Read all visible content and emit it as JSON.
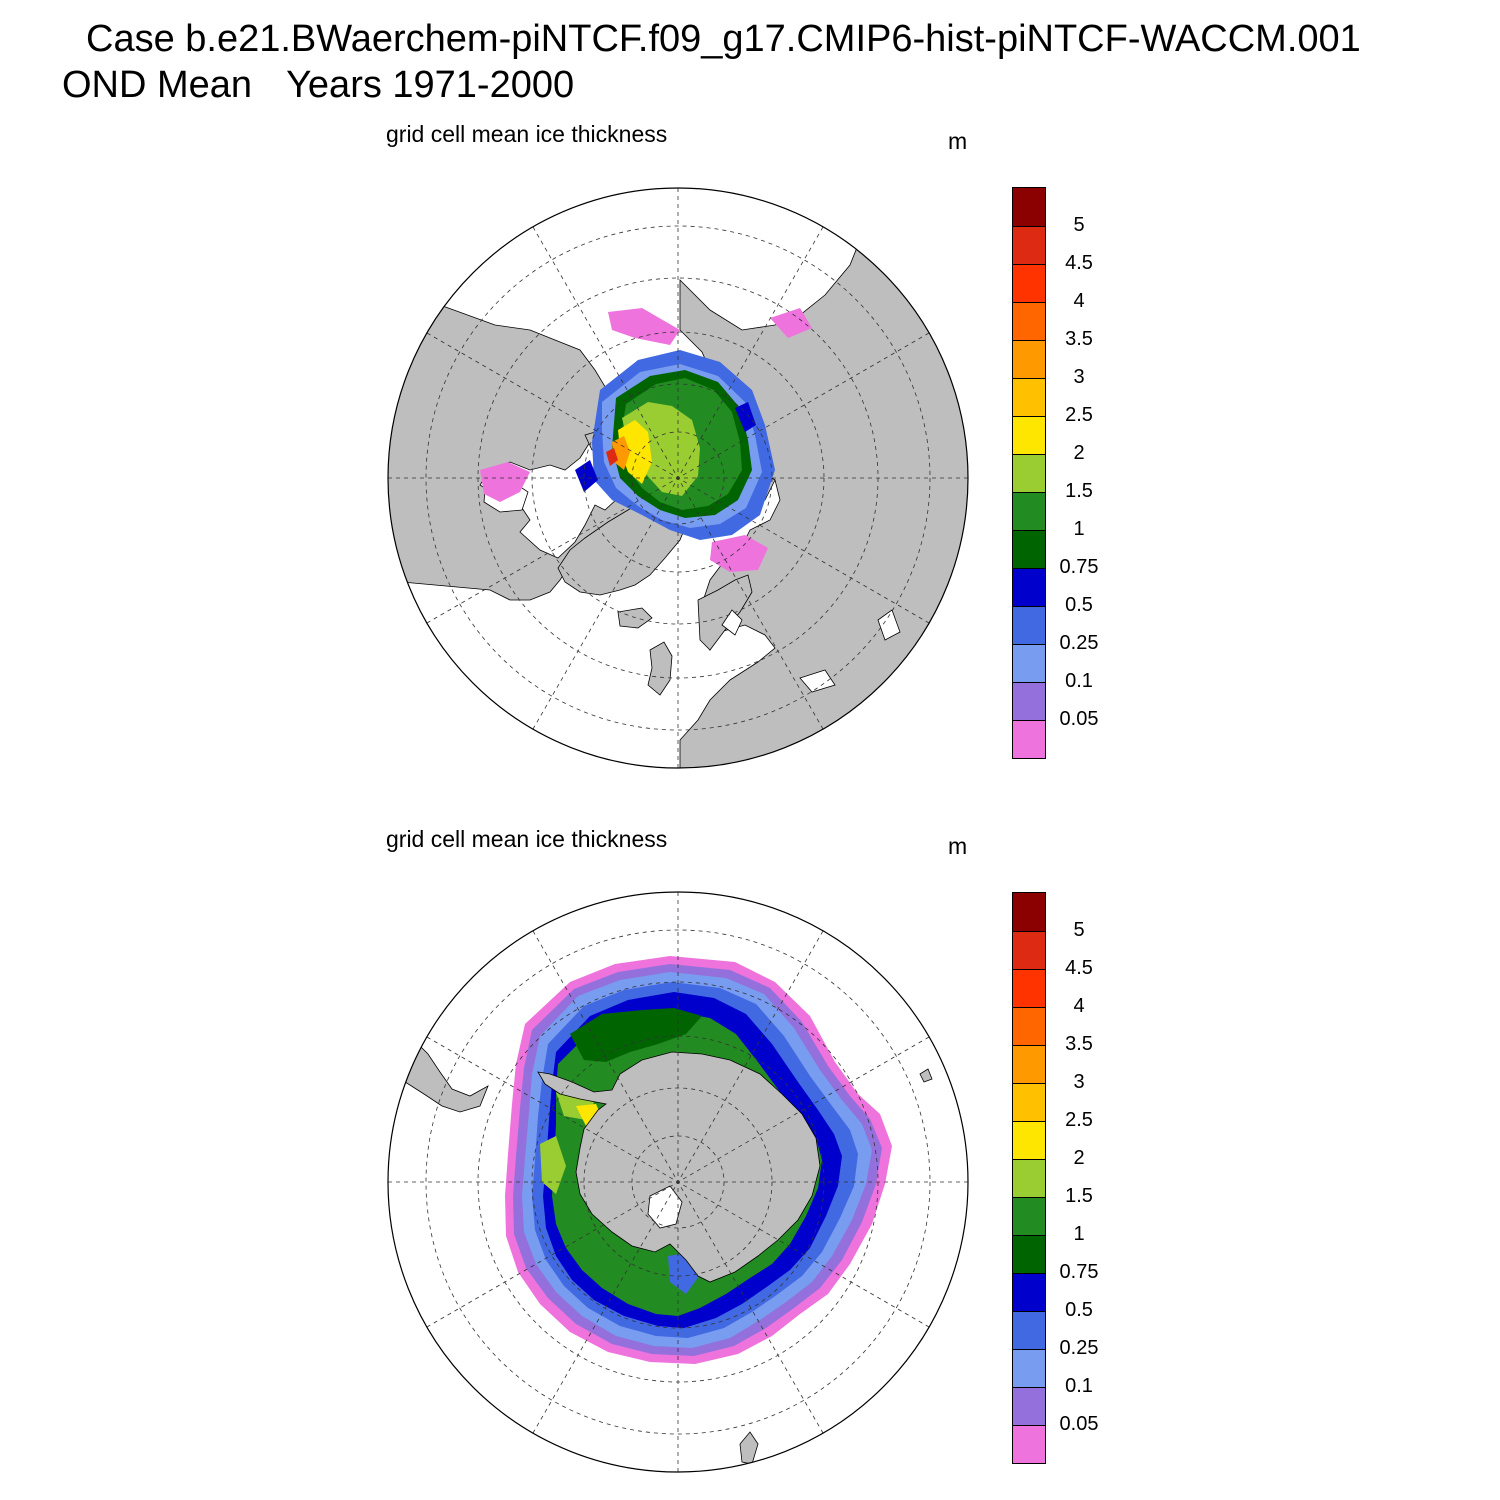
{
  "figure": {
    "title_line1": "Case b.e21.BWaerchem-piNTCF.f09_g17.CMIP6-hist-piNTCF-WACCM.001",
    "title_season": "OND Mean",
    "title_years": "Years 1971-2000"
  },
  "colors": {
    "land": "#bebebe",
    "ocean": "#ffffff",
    "scale": [
      "#ee73dd",
      "#9370db",
      "#789cf0",
      "#4169e1",
      "#0000cd",
      "#006400",
      "#228b22",
      "#9acd32",
      "#ffe600",
      "#ffc000",
      "#ff9900",
      "#ff6600",
      "#ff3300",
      "#dd2a12",
      "#8b0000"
    ]
  },
  "panels": [
    {
      "name": "north",
      "hemisphere": "Northern Hemisphere polar stereographic",
      "title": "grid cell mean ice thickness",
      "units": "m",
      "legend_levels": [
        "0.05",
        "0.1",
        "0.25",
        "0.5",
        "0.75",
        "1",
        "1.5",
        "2",
        "2.5",
        "3",
        "3.5",
        "4",
        "4.5",
        "5"
      ]
    },
    {
      "name": "south",
      "hemisphere": "Southern Hemisphere polar stereographic",
      "title": "grid cell mean ice thickness",
      "units": "m",
      "legend_levels": [
        "0.05",
        "0.1",
        "0.25",
        "0.5",
        "0.75",
        "1",
        "1.5",
        "2",
        "2.5",
        "3",
        "3.5",
        "4",
        "4.5",
        "5"
      ]
    }
  ]
}
